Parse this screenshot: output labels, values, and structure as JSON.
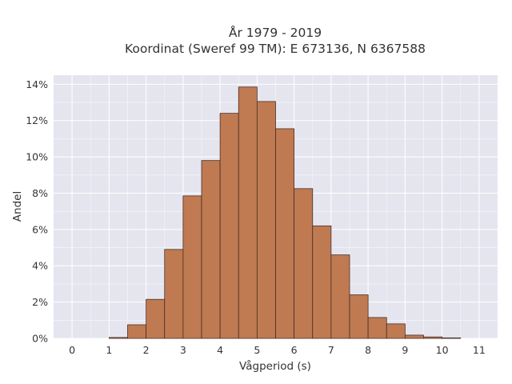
{
  "chart_data": {
    "type": "bar",
    "title": "År 1979 - 2019",
    "subtitle": "Koordinat (Sweref 99 TM): E 673136, N 6367588",
    "xlabel": "Vågperiod (s)",
    "ylabel": "Andel",
    "xlim": [
      -0.5,
      11.5
    ],
    "ylim": [
      0,
      14.5
    ],
    "x_ticks": [
      "0",
      "1",
      "2",
      "3",
      "4",
      "5",
      "6",
      "7",
      "8",
      "9",
      "10",
      "11"
    ],
    "y_ticks": [
      "0%",
      "2%",
      "4%",
      "6%",
      "8%",
      "10%",
      "12%",
      "14%"
    ],
    "y_tick_values": [
      0,
      2,
      4,
      6,
      8,
      10,
      12,
      14
    ],
    "bin_width": 0.5,
    "bins": [
      {
        "start": 1.0,
        "value": 0.05
      },
      {
        "start": 1.5,
        "value": 0.75
      },
      {
        "start": 2.0,
        "value": 2.15
      },
      {
        "start": 2.5,
        "value": 4.9
      },
      {
        "start": 3.0,
        "value": 7.85
      },
      {
        "start": 3.5,
        "value": 9.8
      },
      {
        "start": 4.0,
        "value": 12.4
      },
      {
        "start": 4.5,
        "value": 13.85
      },
      {
        "start": 5.0,
        "value": 13.05
      },
      {
        "start": 5.5,
        "value": 11.55
      },
      {
        "start": 6.0,
        "value": 8.25
      },
      {
        "start": 6.5,
        "value": 6.2
      },
      {
        "start": 7.0,
        "value": 4.6
      },
      {
        "start": 7.5,
        "value": 2.4
      },
      {
        "start": 8.0,
        "value": 1.15
      },
      {
        "start": 8.5,
        "value": 0.8
      },
      {
        "start": 9.0,
        "value": 0.18
      },
      {
        "start": 9.5,
        "value": 0.08
      },
      {
        "start": 10.0,
        "value": 0.03
      }
    ],
    "grid": true,
    "colors": {
      "bar_fill": "#bf7a52",
      "bar_edge": "#4a2e22",
      "plot_bg": "#e5e5ef",
      "grid": "#ffffff"
    }
  }
}
